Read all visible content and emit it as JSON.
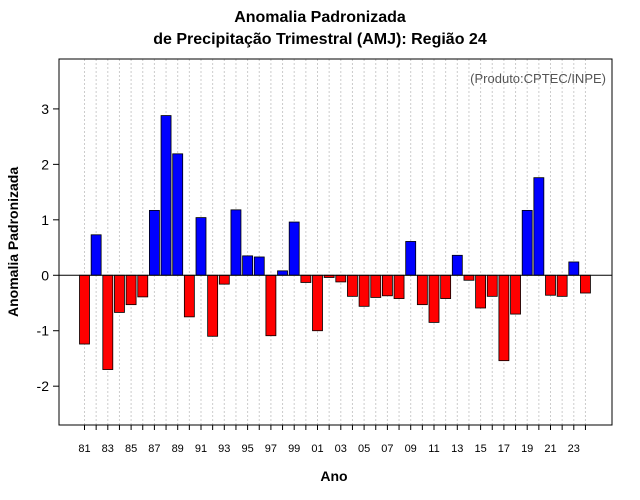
{
  "chart_data": {
    "type": "bar",
    "title": "Anomalia Padronizada",
    "subtitle": "de Precipitação Trimestral (AMJ): Região 24",
    "xlabel": "Ano",
    "ylabel": "Anomalia Padronizada",
    "credit": "(Produto:CPTEC/INPE)",
    "ylim": [
      -2.7,
      3.9
    ],
    "yticks": [
      -2,
      -1,
      0,
      1,
      2,
      3
    ],
    "grid": true,
    "positive_color": "#0000ff",
    "negative_color": "#ff0000",
    "categories": [
      "81",
      "82",
      "83",
      "84",
      "85",
      "86",
      "87",
      "88",
      "89",
      "90",
      "91",
      "92",
      "93",
      "94",
      "95",
      "96",
      "97",
      "98",
      "99",
      "00",
      "01",
      "02",
      "03",
      "04",
      "05",
      "06",
      "07",
      "08",
      "09",
      "10",
      "11",
      "12",
      "13",
      "14",
      "15",
      "16",
      "17",
      "18",
      "19",
      "20",
      "21",
      "22",
      "23",
      "24"
    ],
    "tick_labels": [
      "81",
      "83",
      "85",
      "87",
      "89",
      "91",
      "93",
      "95",
      "97",
      "99",
      "01",
      "03",
      "05",
      "07",
      "09",
      "11",
      "13",
      "15",
      "17",
      "19",
      "21",
      "23"
    ],
    "values": [
      -1.24,
      0.73,
      -1.7,
      -0.67,
      -0.53,
      -0.39,
      1.17,
      2.88,
      2.19,
      -0.75,
      1.04,
      -1.1,
      -0.16,
      1.18,
      0.35,
      0.33,
      -1.09,
      0.08,
      0.96,
      -0.13,
      -1.0,
      -0.04,
      -0.12,
      -0.38,
      -0.56,
      -0.4,
      -0.37,
      -0.42,
      0.61,
      -0.53,
      -0.85,
      -0.42,
      0.36,
      -0.09,
      -0.59,
      -0.38,
      -1.54,
      -0.7,
      1.17,
      1.76,
      -0.36,
      -0.38,
      0.24,
      -0.32
    ]
  }
}
